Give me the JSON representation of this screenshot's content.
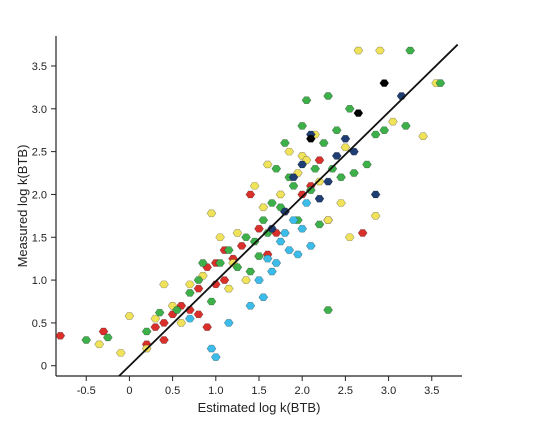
{
  "chart_data": {
    "type": "scatter",
    "xlabel": "Estimated log k(BTB)",
    "ylabel": "Measured log k(BTB)",
    "xlim": [
      -0.85,
      3.85
    ],
    "ylim": [
      -0.12,
      3.85
    ],
    "xticks": [
      "-0.5",
      "0",
      "0.5",
      "1.0",
      "1.5",
      "2.0",
      "2.5",
      "3.0",
      "3.5"
    ],
    "xtick_values": [
      -0.5,
      0,
      0.5,
      1.0,
      1.5,
      2.0,
      2.5,
      3.0,
      3.5
    ],
    "yticks": [
      "0",
      "0.5",
      "1.0",
      "1.5",
      "2.0",
      "2.5",
      "3.0",
      "3.5"
    ],
    "ytick_values": [
      0,
      0.5,
      1.0,
      1.5,
      2.0,
      2.5,
      3.0,
      3.5
    ],
    "fit_line": {
      "x": [
        -0.12,
        3.8
      ],
      "y": [
        -0.12,
        3.75
      ],
      "color": "#111111"
    },
    "colors": {
      "red": "#d9302b",
      "yellow": "#f0e35a",
      "green": "#3db04a",
      "cyan": "#3cbce9",
      "navy": "#1f3e73",
      "black": "#000000"
    },
    "series": [
      {
        "color_key": "red",
        "points": [
          [
            -0.8,
            0.35
          ],
          [
            -0.3,
            0.4
          ],
          [
            0.2,
            0.25
          ],
          [
            0.3,
            0.45
          ],
          [
            0.4,
            0.5
          ],
          [
            0.5,
            0.6
          ],
          [
            0.6,
            0.7
          ],
          [
            0.7,
            0.65
          ],
          [
            0.8,
            0.9
          ],
          [
            0.9,
            1.15
          ],
          [
            1.0,
            1.2
          ],
          [
            1.0,
            0.95
          ],
          [
            1.1,
            1.35
          ],
          [
            1.2,
            1.25
          ],
          [
            1.3,
            1.4
          ],
          [
            1.4,
            2.0
          ],
          [
            1.5,
            1.6
          ],
          [
            1.6,
            1.3
          ],
          [
            1.7,
            1.55
          ],
          [
            1.8,
            1.8
          ],
          [
            2.0,
            2.0
          ],
          [
            2.1,
            2.1
          ],
          [
            2.2,
            2.4
          ],
          [
            2.3,
            1.7
          ],
          [
            2.7,
            1.55
          ],
          [
            0.9,
            0.45
          ],
          [
            1.1,
            1.0
          ],
          [
            0.4,
            0.3
          ],
          [
            0.8,
            0.6
          ]
        ]
      },
      {
        "color_key": "yellow",
        "points": [
          [
            -0.35,
            0.25
          ],
          [
            -0.1,
            0.15
          ],
          [
            0.0,
            0.58
          ],
          [
            0.2,
            0.2
          ],
          [
            0.3,
            0.55
          ],
          [
            0.4,
            0.95
          ],
          [
            0.5,
            0.7
          ],
          [
            0.6,
            0.5
          ],
          [
            0.7,
            0.95
          ],
          [
            0.85,
            1.05
          ],
          [
            0.95,
            1.78
          ],
          [
            1.05,
            1.5
          ],
          [
            1.15,
            0.9
          ],
          [
            1.2,
            1.2
          ],
          [
            1.25,
            1.55
          ],
          [
            1.45,
            2.1
          ],
          [
            1.6,
            2.35
          ],
          [
            1.75,
            2.0
          ],
          [
            1.85,
            2.5
          ],
          [
            1.95,
            2.25
          ],
          [
            2.0,
            2.45
          ],
          [
            2.05,
            2.4
          ],
          [
            2.15,
            2.7
          ],
          [
            2.2,
            2.15
          ],
          [
            2.3,
            1.7
          ],
          [
            2.45,
            1.9
          ],
          [
            2.55,
            1.5
          ],
          [
            2.65,
            3.68
          ],
          [
            2.9,
            3.68
          ],
          [
            2.85,
            1.75
          ],
          [
            3.05,
            2.85
          ],
          [
            3.4,
            2.68
          ],
          [
            3.55,
            3.3
          ],
          [
            2.5,
            2.55
          ],
          [
            1.35,
            1.0
          ],
          [
            1.55,
            1.85
          ]
        ]
      },
      {
        "color_key": "green",
        "points": [
          [
            -0.5,
            0.3
          ],
          [
            -0.25,
            0.33
          ],
          [
            0.2,
            0.4
          ],
          [
            0.35,
            0.62
          ],
          [
            0.55,
            0.65
          ],
          [
            0.7,
            0.85
          ],
          [
            0.8,
            1.0
          ],
          [
            0.95,
            0.75
          ],
          [
            1.05,
            1.2
          ],
          [
            1.15,
            1.35
          ],
          [
            1.25,
            1.15
          ],
          [
            1.35,
            1.5
          ],
          [
            1.45,
            1.45
          ],
          [
            1.55,
            1.7
          ],
          [
            1.65,
            1.9
          ],
          [
            1.75,
            1.85
          ],
          [
            1.8,
            2.6
          ],
          [
            1.85,
            2.2
          ],
          [
            1.9,
            2.1
          ],
          [
            1.95,
            1.7
          ],
          [
            2.0,
            2.8
          ],
          [
            2.05,
            3.1
          ],
          [
            2.1,
            2.05
          ],
          [
            2.15,
            2.3
          ],
          [
            2.2,
            1.65
          ],
          [
            2.25,
            2.6
          ],
          [
            2.3,
            3.15
          ],
          [
            2.35,
            2.3
          ],
          [
            2.4,
            2.75
          ],
          [
            2.45,
            2.2
          ],
          [
            2.55,
            3.0
          ],
          [
            2.6,
            2.25
          ],
          [
            2.75,
            2.35
          ],
          [
            2.85,
            2.7
          ],
          [
            2.95,
            2.75
          ],
          [
            3.2,
            2.8
          ],
          [
            3.25,
            3.68
          ],
          [
            3.6,
            3.3
          ],
          [
            2.3,
            0.65
          ],
          [
            1.5,
            1.28
          ],
          [
            1.7,
            2.3
          ],
          [
            1.6,
            1.55
          ],
          [
            0.85,
            1.2
          ],
          [
            1.4,
            1.1
          ]
        ]
      },
      {
        "color_key": "cyan",
        "points": [
          [
            0.7,
            0.55
          ],
          [
            0.95,
            0.2
          ],
          [
            1.0,
            0.1
          ],
          [
            1.15,
            0.5
          ],
          [
            1.4,
            0.7
          ],
          [
            1.5,
            1.0
          ],
          [
            1.6,
            1.25
          ],
          [
            1.7,
            1.2
          ],
          [
            1.75,
            1.45
          ],
          [
            1.8,
            1.55
          ],
          [
            1.85,
            1.35
          ],
          [
            1.9,
            1.7
          ],
          [
            2.0,
            1.6
          ],
          [
            2.05,
            1.9
          ],
          [
            2.1,
            1.4
          ],
          [
            1.95,
            1.3
          ],
          [
            1.65,
            1.1
          ],
          [
            1.55,
            0.8
          ]
        ]
      },
      {
        "color_key": "navy",
        "points": [
          [
            1.8,
            1.8
          ],
          [
            1.9,
            2.2
          ],
          [
            2.0,
            2.35
          ],
          [
            2.1,
            2.7
          ],
          [
            2.3,
            2.15
          ],
          [
            2.4,
            2.45
          ],
          [
            2.5,
            2.65
          ],
          [
            2.6,
            2.5
          ],
          [
            2.85,
            2.0
          ],
          [
            3.15,
            3.15
          ],
          [
            1.65,
            1.6
          ],
          [
            2.2,
            1.95
          ]
        ]
      },
      {
        "color_key": "black",
        "points": [
          [
            2.65,
            2.95
          ],
          [
            2.95,
            3.3
          ],
          [
            2.1,
            2.65
          ]
        ]
      }
    ]
  }
}
